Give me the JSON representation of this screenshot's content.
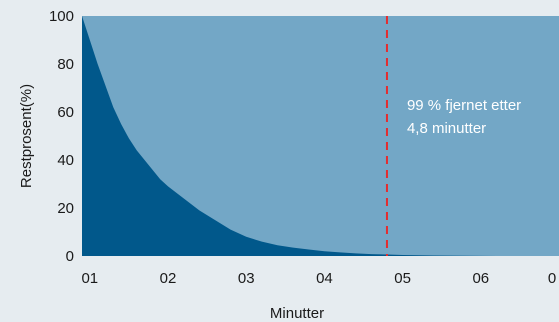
{
  "chart_data": {
    "type": "area",
    "xlabel": "Minutter",
    "ylabel": "Restprosent(%)",
    "x_ticks": [
      "01",
      "02",
      "03",
      "04",
      "05",
      "06",
      "0"
    ],
    "xlim": [
      0.9,
      7.0
    ],
    "y_ticks": [
      0,
      20,
      40,
      60,
      80,
      100
    ],
    "ylim": [
      0,
      100
    ],
    "grid": false,
    "series": [
      {
        "x": [
          0.9,
          1.0,
          1.1,
          1.2,
          1.3,
          1.4,
          1.5,
          1.6,
          1.7,
          1.8,
          1.9,
          2.0,
          2.2,
          2.4,
          2.6,
          2.8,
          3.0,
          3.2,
          3.4,
          3.6,
          3.8,
          4.0,
          4.2,
          4.4,
          4.6,
          4.8,
          5.0,
          5.4,
          5.8,
          6.2
        ],
        "values": [
          100,
          90,
          80,
          71,
          62,
          55,
          49,
          44,
          40,
          36,
          32,
          29,
          24,
          19,
          15,
          11,
          8,
          6,
          4.5,
          3.5,
          2.7,
          2,
          1.5,
          1.1,
          0.8,
          0.6,
          0.4,
          0.2,
          0.1,
          0
        ]
      }
    ],
    "colors": {
      "plot_bg": "#73a7c6",
      "area_fill": "#01588b",
      "marker_line": "#e42d2f"
    },
    "vline": {
      "x": 4.8,
      "text_lines": [
        "99 % fjernet etter",
        "4,8 minutter"
      ]
    }
  }
}
